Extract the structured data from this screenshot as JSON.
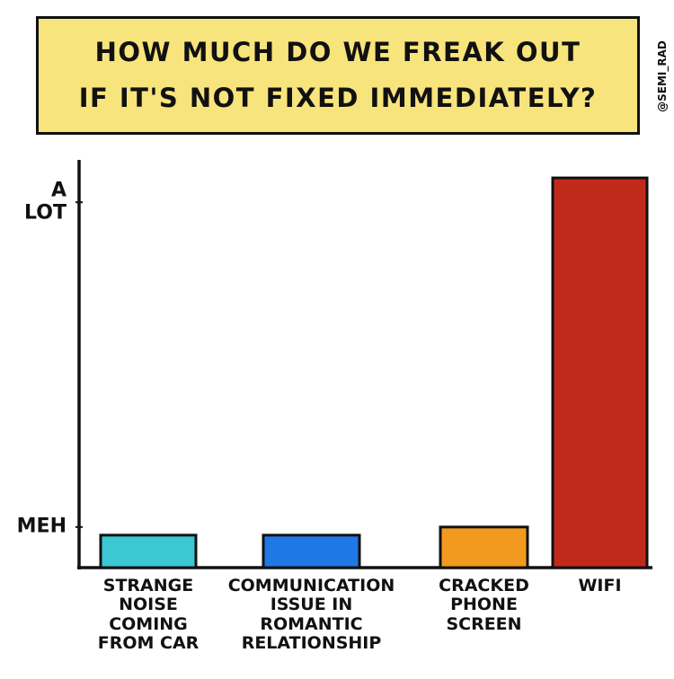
{
  "chart_data": {
    "type": "bar",
    "title": "HOW MUCH DO WE FREAK OUT\nIF IT'S NOT FIXED IMMEDIATELY?",
    "credit": "@SEMI_RAD",
    "categories": [
      "STRANGE\nNOISE\nCOMING\nFROM CAR",
      "COMMUNICATION\nISSUE IN\nROMANTIC\nRELATIONSHIP",
      "CRACKED\nPHONE\nSCREEN",
      "WIFI"
    ],
    "values": [
      0.8,
      0.8,
      1.0,
      9.6
    ],
    "colors": [
      "#3cc8d2",
      "#1f78e6",
      "#f29a1f",
      "#c1291b"
    ],
    "ylim": [
      0,
      10
    ],
    "yticks": [
      {
        "value": 1,
        "label": "MEH"
      },
      {
        "value": 9,
        "label": "A\nLOT"
      }
    ],
    "grid": false
  }
}
